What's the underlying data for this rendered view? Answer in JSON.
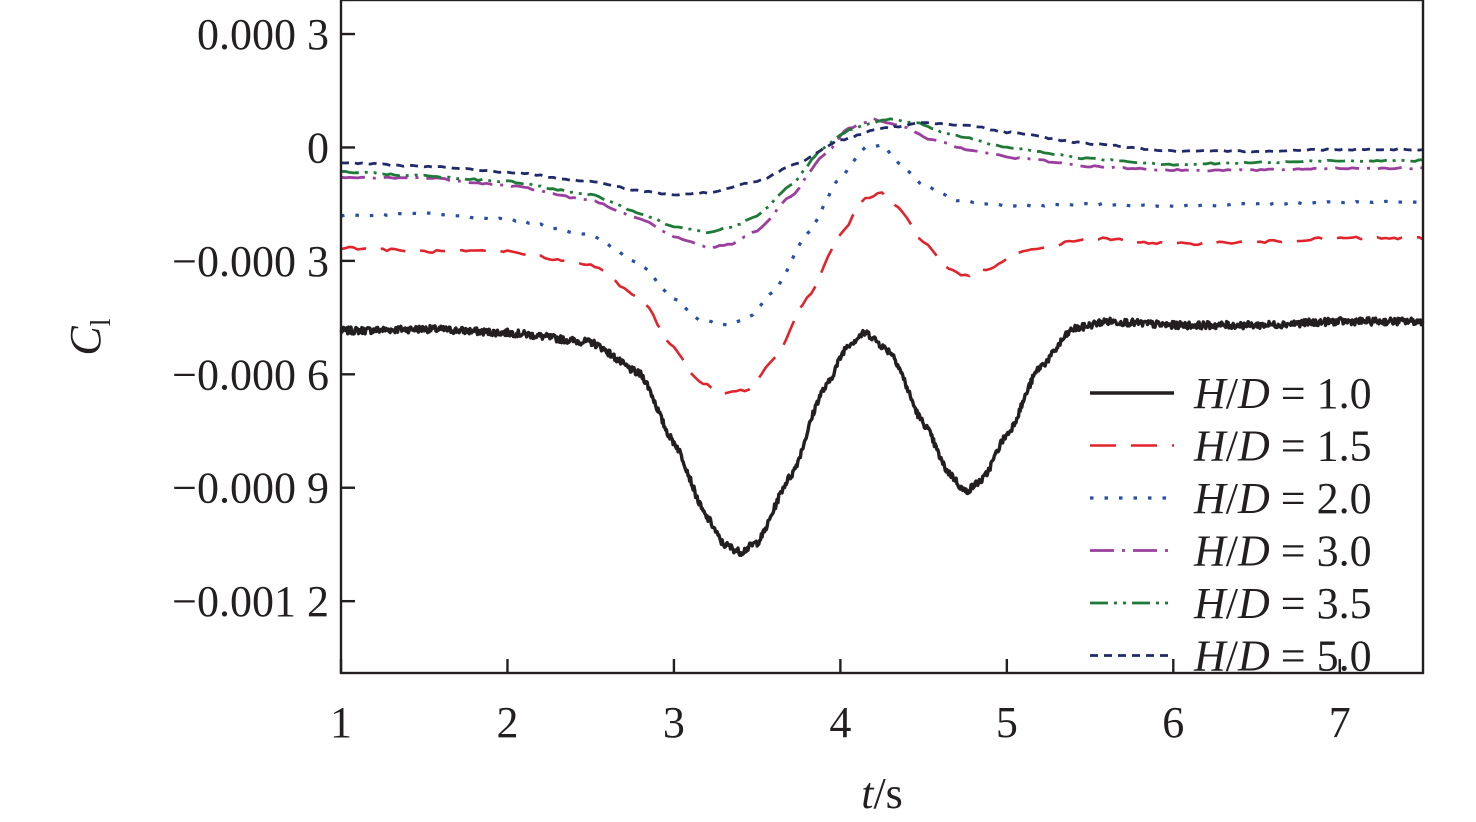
{
  "chart_data": {
    "type": "line",
    "xlabel_italic": "t",
    "xlabel_rest": "/s",
    "ylabel_main": "C",
    "ylabel_sub": "l",
    "xlim": [
      1,
      7.5
    ],
    "ylim": [
      -0.00139,
      0.00039
    ],
    "x_ticks": [
      1,
      2,
      3,
      4,
      5,
      6,
      7
    ],
    "x_tick_labels": [
      "1",
      "2",
      "3",
      "4",
      "5",
      "6",
      "7"
    ],
    "y_ticks": [
      0.0003,
      0,
      -0.0003,
      -0.0006,
      -0.0009,
      -0.0012
    ],
    "y_tick_labels": [
      "0.000 3",
      "0",
      "−0.000 3",
      "−0.000 6",
      "−0.000 9",
      "−0.001 2"
    ],
    "grid": false,
    "legend_position": "lower-right",
    "series": [
      {
        "name": "H/D = 1.0",
        "legend_italic_1": "H",
        "legend_slash": "/",
        "legend_italic_2": "D",
        "legend_rest": " = 1.0",
        "color": "#231f20",
        "dash": "",
        "width": 3.4,
        "noise": 9.5e-06,
        "points": [
          [
            1.0,
            -0.000485
          ],
          [
            1.5,
            -0.00048
          ],
          [
            2.0,
            -0.00049
          ],
          [
            2.5,
            -0.000515
          ],
          [
            2.8,
            -0.0006
          ],
          [
            3.0,
            -0.00078
          ],
          [
            3.2,
            -0.00098
          ],
          [
            3.3,
            -0.00105
          ],
          [
            3.4,
            -0.00107
          ],
          [
            3.5,
            -0.001045
          ],
          [
            3.7,
            -0.00087
          ],
          [
            3.9,
            -0.00064
          ],
          [
            4.05,
            -0.00052
          ],
          [
            4.15,
            -0.00049
          ],
          [
            4.3,
            -0.00054
          ],
          [
            4.5,
            -0.00073
          ],
          [
            4.65,
            -0.00086
          ],
          [
            4.75,
            -0.00091
          ],
          [
            4.85,
            -0.00088
          ],
          [
            5.0,
            -0.00076
          ],
          [
            5.2,
            -0.00058
          ],
          [
            5.4,
            -0.00048
          ],
          [
            5.6,
            -0.00046
          ],
          [
            6.0,
            -0.00047
          ],
          [
            6.5,
            -0.00047
          ],
          [
            7.0,
            -0.00046
          ],
          [
            7.5,
            -0.00046
          ]
        ]
      },
      {
        "name": "H/D = 1.5",
        "legend_italic_1": "H",
        "legend_slash": "/",
        "legend_italic_2": "D",
        "legend_rest": " = 1.5",
        "color": "#e1242b",
        "dash": "26 15",
        "width": 2.6,
        "noise": 3.5e-06,
        "points": [
          [
            1.0,
            -0.000265
          ],
          [
            1.5,
            -0.000275
          ],
          [
            2.0,
            -0.000275
          ],
          [
            2.5,
            -0.00031
          ],
          [
            2.8,
            -0.0004
          ],
          [
            3.0,
            -0.00053
          ],
          [
            3.15,
            -0.00062
          ],
          [
            3.3,
            -0.00065
          ],
          [
            3.45,
            -0.00064
          ],
          [
            3.6,
            -0.00056
          ],
          [
            3.8,
            -0.0004
          ],
          [
            4.0,
            -0.00023
          ],
          [
            4.15,
            -0.000135
          ],
          [
            4.25,
            -0.00012
          ],
          [
            4.35,
            -0.00016
          ],
          [
            4.5,
            -0.00025
          ],
          [
            4.65,
            -0.00032
          ],
          [
            4.75,
            -0.00034
          ],
          [
            4.9,
            -0.00032
          ],
          [
            5.1,
            -0.000275
          ],
          [
            5.5,
            -0.00024
          ],
          [
            6.0,
            -0.000255
          ],
          [
            6.5,
            -0.00025
          ],
          [
            7.0,
            -0.00024
          ],
          [
            7.5,
            -0.00024
          ]
        ]
      },
      {
        "name": "H/D = 2.0",
        "legend_italic_1": "H",
        "legend_slash": "/",
        "legend_italic_2": "D",
        "legend_rest": " = 2.0",
        "color": "#274fa5",
        "dash": "3.5 11",
        "width": 3.2,
        "noise": 2.5e-06,
        "points": [
          [
            1.0,
            -0.00018
          ],
          [
            1.5,
            -0.000175
          ],
          [
            2.0,
            -0.00019
          ],
          [
            2.5,
            -0.00023
          ],
          [
            2.8,
            -0.00031
          ],
          [
            3.0,
            -0.0004
          ],
          [
            3.15,
            -0.000455
          ],
          [
            3.3,
            -0.00047
          ],
          [
            3.45,
            -0.00045
          ],
          [
            3.6,
            -0.00038
          ],
          [
            3.8,
            -0.00023
          ],
          [
            4.0,
            -8e-05
          ],
          [
            4.15,
            0.0
          ],
          [
            4.25,
            5e-06
          ],
          [
            4.35,
            -4e-05
          ],
          [
            4.5,
            -0.0001
          ],
          [
            4.7,
            -0.00014
          ],
          [
            5.0,
            -0.000155
          ],
          [
            5.5,
            -0.00015
          ],
          [
            6.0,
            -0.000155
          ],
          [
            6.5,
            -0.00015
          ],
          [
            7.0,
            -0.000145
          ],
          [
            7.5,
            -0.000145
          ]
        ]
      },
      {
        "name": "H/D = 3.0",
        "legend_italic_1": "H",
        "legend_slash": "/",
        "legend_italic_2": "D",
        "legend_rest": " = 3.0",
        "color": "#9b3f9e",
        "dash": "24 8 3 8",
        "width": 2.8,
        "noise": 2.2e-06,
        "points": [
          [
            1.0,
            -8e-05
          ],
          [
            1.5,
            -8e-05
          ],
          [
            2.0,
            -0.0001
          ],
          [
            2.5,
            -0.00014
          ],
          [
            2.8,
            -0.00019
          ],
          [
            3.0,
            -0.000235
          ],
          [
            3.2,
            -0.000265
          ],
          [
            3.35,
            -0.000255
          ],
          [
            3.5,
            -0.00022
          ],
          [
            3.7,
            -0.00013
          ],
          [
            3.9,
            -2e-05
          ],
          [
            4.05,
            5e-05
          ],
          [
            4.2,
            7.5e-05
          ],
          [
            4.35,
            6e-05
          ],
          [
            4.55,
            2e-05
          ],
          [
            4.8,
            -1e-05
          ],
          [
            5.1,
            -3e-05
          ],
          [
            5.5,
            -5e-05
          ],
          [
            6.0,
            -6e-05
          ],
          [
            6.5,
            -6e-05
          ],
          [
            7.0,
            -5.5e-05
          ],
          [
            7.5,
            -5.5e-05
          ]
        ]
      },
      {
        "name": "H/D = 3.5",
        "legend_italic_1": "H",
        "legend_slash": "/",
        "legend_italic_2": "D",
        "legend_rest": " = 3.5",
        "color": "#1f7a37",
        "dash": "18 6 3 6 3 6",
        "width": 2.8,
        "noise": 2.2e-06,
        "points": [
          [
            1.0,
            -6.5e-05
          ],
          [
            1.5,
            -7.5e-05
          ],
          [
            2.0,
            -9e-05
          ],
          [
            2.5,
            -0.000125
          ],
          [
            2.8,
            -0.000175
          ],
          [
            3.0,
            -0.00021
          ],
          [
            3.2,
            -0.000225
          ],
          [
            3.35,
            -0.00021
          ],
          [
            3.5,
            -0.00018
          ],
          [
            3.7,
            -0.0001
          ],
          [
            3.9,
            0.0
          ],
          [
            4.05,
            4.5e-05
          ],
          [
            4.2,
            6.5e-05
          ],
          [
            4.3,
            7.5e-05
          ],
          [
            4.45,
            6.5e-05
          ],
          [
            4.7,
            3e-05
          ],
          [
            5.0,
            0.0
          ],
          [
            5.5,
            -3e-05
          ],
          [
            6.0,
            -4.5e-05
          ],
          [
            6.5,
            -4e-05
          ],
          [
            7.0,
            -3.5e-05
          ],
          [
            7.5,
            -3.5e-05
          ]
        ]
      },
      {
        "name": "H/D = 5.0",
        "legend_italic_1": "H",
        "legend_slash": "/",
        "legend_italic_2": "D",
        "legend_rest": " = 5.0",
        "color": "#1f2a6b",
        "dash": "8 6",
        "width": 2.8,
        "noise": 2e-06,
        "points": [
          [
            1.0,
            -4e-05
          ],
          [
            1.5,
            -5e-05
          ],
          [
            2.0,
            -6.5e-05
          ],
          [
            2.5,
            -9e-05
          ],
          [
            2.8,
            -0.000115
          ],
          [
            3.0,
            -0.000125
          ],
          [
            3.2,
            -0.00012
          ],
          [
            3.5,
            -9e-05
          ],
          [
            3.75,
            -4e-05
          ],
          [
            4.0,
            2e-05
          ],
          [
            4.25,
            5e-05
          ],
          [
            4.5,
            6.5e-05
          ],
          [
            4.75,
            6e-05
          ],
          [
            5.0,
            4e-05
          ],
          [
            5.5,
            1e-05
          ],
          [
            6.0,
            -1e-05
          ],
          [
            6.5,
            -1e-05
          ],
          [
            7.0,
            -5e-06
          ],
          [
            7.5,
            -5e-06
          ]
        ]
      }
    ]
  }
}
